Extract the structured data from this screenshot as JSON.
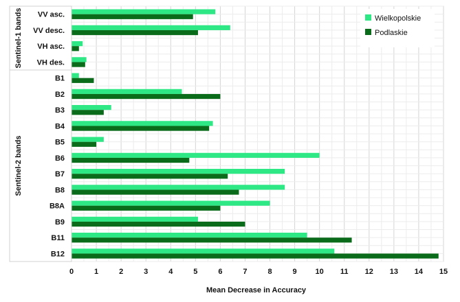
{
  "chart_data": {
    "type": "bar",
    "orientation": "horizontal",
    "categories": [
      "VV asc.",
      "VV desc.",
      "VH asc.",
      "VH des.",
      "B1",
      "B2",
      "B3",
      "B4",
      "B5",
      "B6",
      "B7",
      "B8",
      "B8A",
      "B9",
      "B11",
      "B12"
    ],
    "series": [
      {
        "name": "Wielkopolskie",
        "color": "#2ee886",
        "values": [
          5.8,
          6.4,
          0.45,
          0.6,
          0.3,
          4.45,
          1.6,
          5.7,
          1.3,
          10.0,
          8.6,
          8.6,
          8.0,
          5.1,
          9.5,
          10.6
        ]
      },
      {
        "name": "Podlaskie",
        "color": "#0a6b1a",
        "values": [
          4.9,
          5.1,
          0.3,
          0.55,
          0.9,
          6.0,
          1.3,
          5.55,
          1.0,
          4.75,
          6.3,
          6.75,
          6.0,
          7.0,
          11.3,
          14.8
        ]
      }
    ],
    "xlabel": "Mean Decrease in Accuracy",
    "xlim": [
      0,
      15
    ],
    "xticks": [
      "0",
      "1",
      "2",
      "3",
      "4",
      "5",
      "6",
      "7",
      "8",
      "9",
      "10",
      "11",
      "12",
      "13",
      "14",
      "15"
    ],
    "groups": [
      {
        "label": "Sentinel-1 bands",
        "categories": [
          "VV asc.",
          "VV desc.",
          "VH asc.",
          "VH des."
        ]
      },
      {
        "label": "Sentinel-2 bands",
        "categories": [
          "B1",
          "B2",
          "B3",
          "B4",
          "B5",
          "B6",
          "B7",
          "B8",
          "B8A",
          "B9",
          "B11",
          "B12"
        ]
      }
    ],
    "grid": true,
    "legend_position": "top-right"
  }
}
